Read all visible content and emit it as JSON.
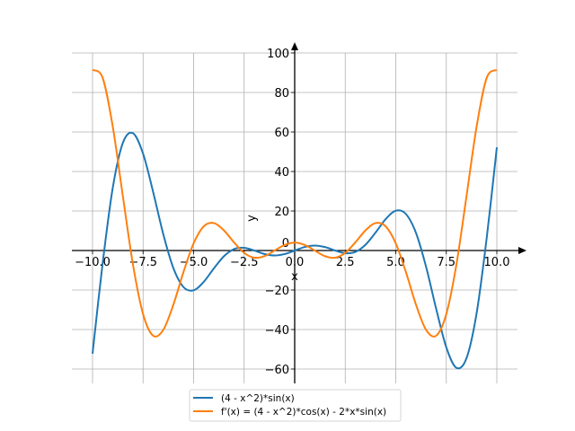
{
  "chart_data": {
    "type": "line",
    "title": "",
    "xlabel": "x",
    "ylabel": "y",
    "xlim": [
      -10,
      10
    ],
    "ylim": [
      -60,
      100
    ],
    "grid": true,
    "legend_position": "bottom-center",
    "x_ticks": [
      "−10.0",
      "−7.5",
      "−5.0",
      "−2.5",
      "0.0",
      "2.5",
      "5.0",
      "7.5",
      "10.0"
    ],
    "x_tick_values": [
      -10,
      -7.5,
      -5,
      -2.5,
      0,
      2.5,
      5,
      7.5,
      10
    ],
    "y_ticks": [
      "−60",
      "−40",
      "−20",
      "0",
      "20",
      "40",
      "60",
      "80",
      "100"
    ],
    "y_tick_values": [
      -60,
      -40,
      -20,
      0,
      20,
      40,
      60,
      80,
      100
    ],
    "x": [
      -10,
      -9.5,
      -9,
      -8.5,
      -8,
      -7.5,
      -7,
      -6.5,
      -6,
      -5.5,
      -5,
      -4.5,
      -4,
      -3.5,
      -3,
      -2.5,
      -2,
      -1.5,
      -1,
      -0.5,
      0,
      0.5,
      1,
      1.5,
      2,
      2.5,
      3,
      3.5,
      4,
      4.5,
      5,
      5.5,
      6,
      6.5,
      7,
      7.5,
      8,
      8.5,
      9,
      9.5,
      10
    ],
    "series": [
      {
        "name": "(4 - x^2)*sin(x)",
        "color": "#1f77b4",
        "values": [
          -52.22,
          -6.49,
          31.73,
          54.5,
          59.36,
          49.01,
          29.57,
          8.23,
          -8.94,
          -18.52,
          -20.14,
          -15.88,
          -9.08,
          -2.89,
          0.71,
          1.35,
          0,
          -1.75,
          -2.52,
          -1.8,
          0,
          1.8,
          2.52,
          1.75,
          0,
          -1.35,
          -0.71,
          2.89,
          9.08,
          15.88,
          20.14,
          18.52,
          8.94,
          -8.23,
          -29.57,
          -49.01,
          -59.36,
          -54.5,
          -31.73,
          6.49,
          52.22
        ]
      },
      {
        "name": "f'(x) = (4 - x^2)*cos(x) - 2*x*sin(x)",
        "color": "#ff7f0e",
        "values": [
          91.43,
          87.44,
          62.74,
          27.51,
          -7.1,
          -32.18,
          -43.12,
          -40.15,
          -27.38,
          -10.84,
          3.63,
          12.22,
          13.9,
          10.18,
          4.1,
          -1.19,
          -3.64,
          -2.87,
          -0.06,
          2.81,
          4,
          2.81,
          -0.06,
          -2.87,
          -3.64,
          -1.19,
          4.1,
          10.18,
          13.9,
          12.22,
          3.63,
          -10.84,
          -27.38,
          -40.15,
          -43.12,
          -32.18,
          -7.1,
          27.51,
          62.74,
          87.44,
          91.43
        ]
      }
    ]
  }
}
